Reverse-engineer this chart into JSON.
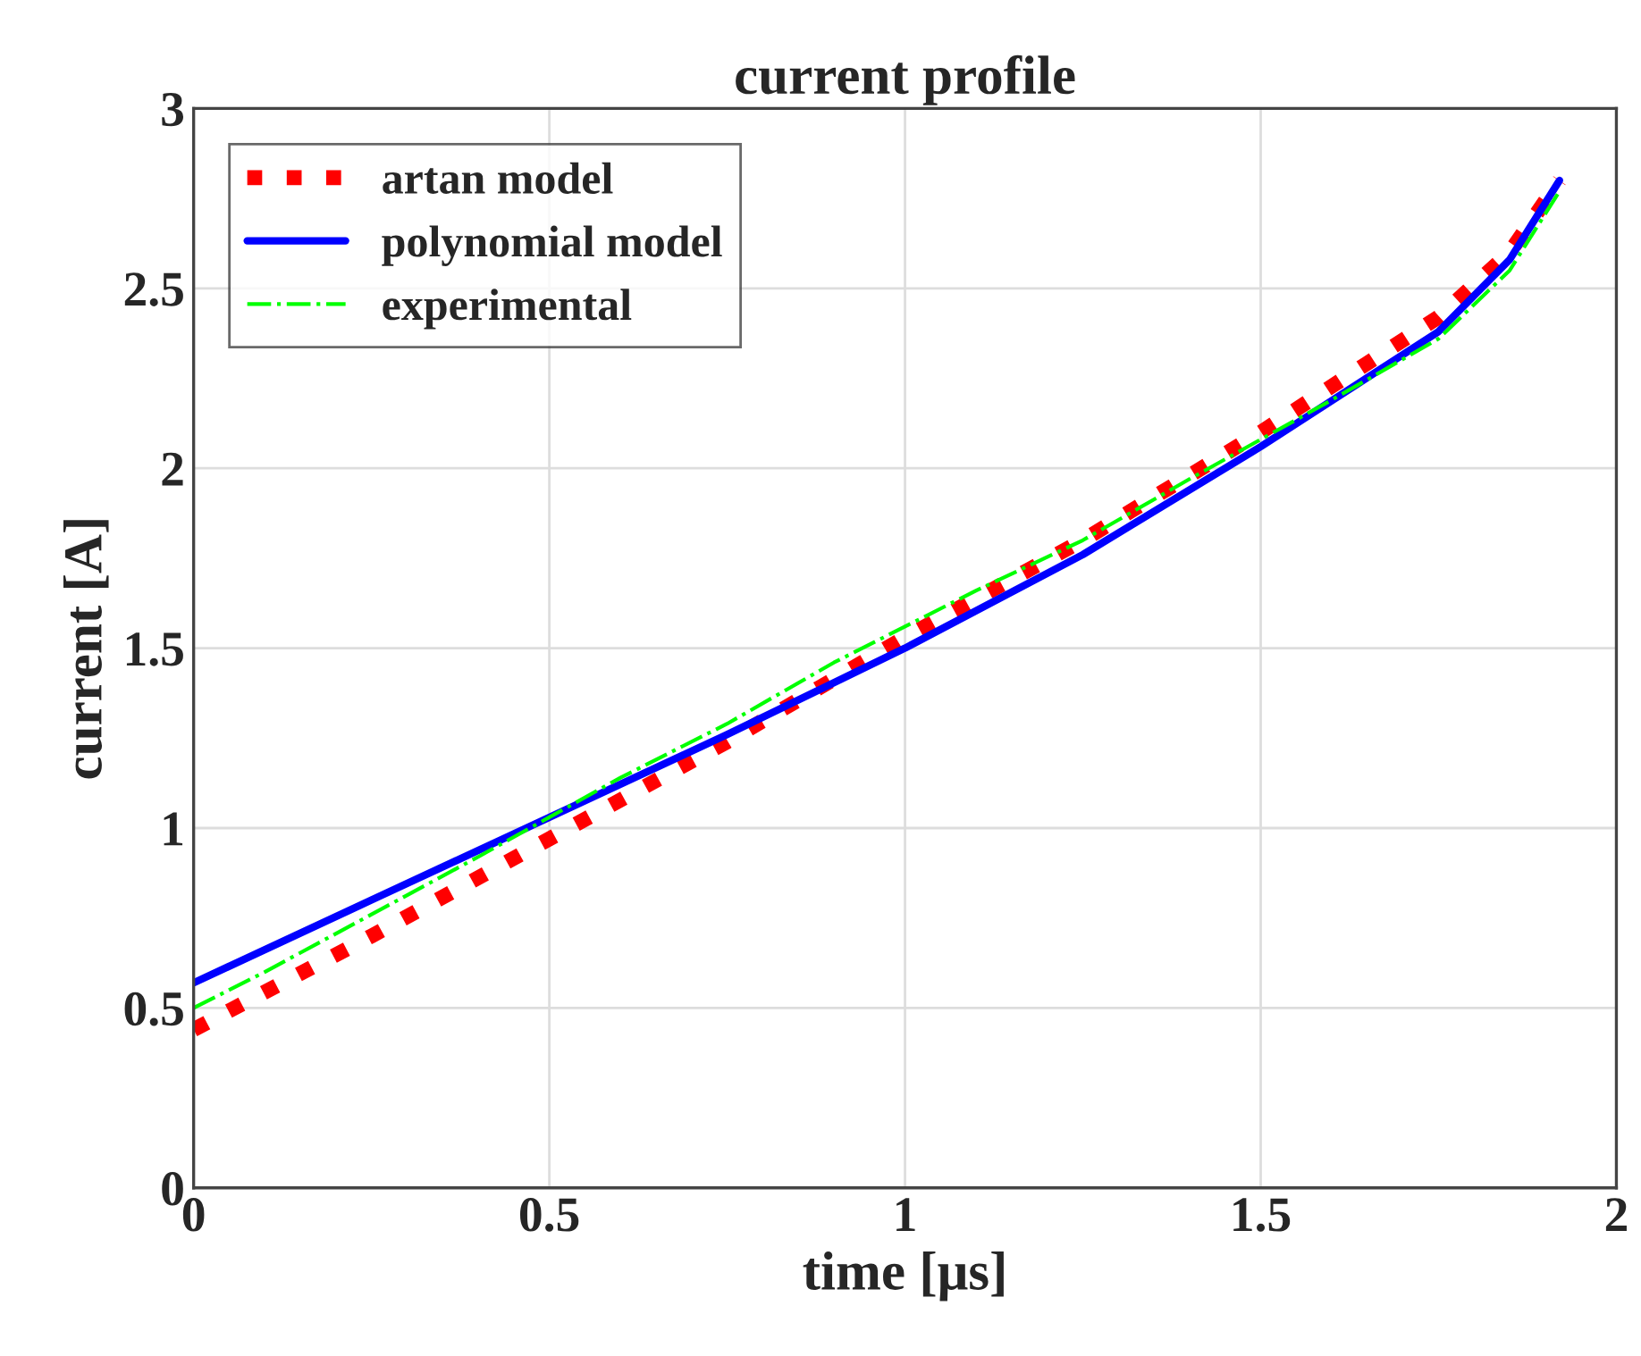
{
  "chart_data": {
    "type": "line",
    "title": "current profile",
    "xlabel": "time [μs]",
    "ylabel": "current [A]",
    "xlim": [
      0,
      2
    ],
    "xticks": [
      0,
      0.5,
      1,
      1.5,
      2
    ],
    "ylim": [
      0,
      3
    ],
    "yticks": [
      0,
      0.5,
      1,
      1.5,
      2,
      2.5,
      3
    ],
    "grid": true,
    "legend": "top left",
    "series": [
      {
        "name": "artan model",
        "color": "#ff0000",
        "line_style": "dotted",
        "x": [
          0,
          0.25,
          0.5,
          0.75,
          1.0,
          1.25,
          1.5,
          1.75,
          1.85,
          1.92
        ],
        "values": [
          0.44,
          0.7,
          0.97,
          1.24,
          1.53,
          1.8,
          2.1,
          2.42,
          2.6,
          2.8
        ]
      },
      {
        "name": "polynomial model",
        "color": "#0000ff",
        "line_style": "solid",
        "x": [
          0,
          0.25,
          0.5,
          0.75,
          1.0,
          1.25,
          1.5,
          1.75,
          1.85,
          1.92
        ],
        "values": [
          0.57,
          0.8,
          1.03,
          1.26,
          1.5,
          1.76,
          2.06,
          2.38,
          2.58,
          2.8
        ]
      },
      {
        "name": "experimental",
        "color": "#00ff00",
        "line_style": "dashdot",
        "x": [
          0,
          0.1,
          0.25,
          0.4,
          0.5,
          0.6,
          0.75,
          0.9,
          1.0,
          1.1,
          1.25,
          1.4,
          1.5,
          1.6,
          1.75,
          1.85,
          1.92
        ],
        "values": [
          0.5,
          0.6,
          0.76,
          0.92,
          1.03,
          1.14,
          1.29,
          1.46,
          1.56,
          1.66,
          1.8,
          1.97,
          2.08,
          2.19,
          2.36,
          2.55,
          2.77
        ]
      }
    ]
  }
}
